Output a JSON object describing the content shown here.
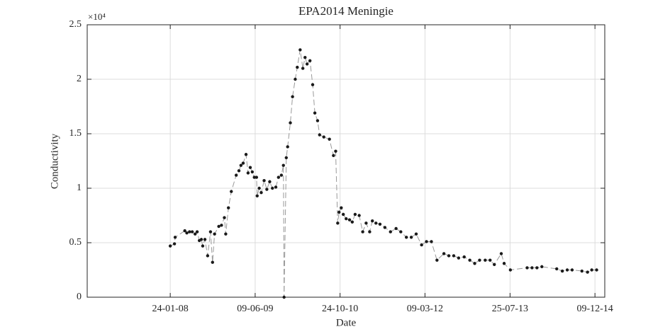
{
  "chart_data": {
    "type": "line",
    "title": "EPA2014 Meningie",
    "x_label": "Date",
    "y_label": "Conductivity",
    "y_scale_label": "×10⁴",
    "x": [
      "2008-01-24",
      "2008-02-18",
      "2008-02-22",
      "2008-04-19",
      "2008-05-01",
      "2008-05-17",
      "2008-06-02",
      "2008-06-19",
      "2008-07-01",
      "2008-07-14",
      "2008-07-26",
      "2008-08-03",
      "2008-08-16",
      "2008-09-01",
      "2008-09-18",
      "2008-09-30",
      "2008-10-12",
      "2008-11-06",
      "2008-11-22",
      "2008-12-09",
      "2008-12-17",
      "2009-01-02",
      "2009-01-19",
      "2009-02-17",
      "2009-03-05",
      "2009-03-17",
      "2009-03-30",
      "2009-04-16",
      "2009-04-28",
      "2009-05-11",
      "2009-05-23",
      "2009-06-04",
      "2009-06-17",
      "2009-06-21",
      "2009-07-03",
      "2009-07-15",
      "2009-08-01",
      "2009-08-17",
      "2009-09-03",
      "2009-09-19",
      "2009-10-09",
      "2009-10-25",
      "2009-11-11",
      "2009-11-23",
      "2009-11-27",
      "2009-12-10",
      "2009-12-18",
      "2010-01-03",
      "2010-01-16",
      "2010-02-01",
      "2010-02-13",
      "2010-03-02",
      "2010-03-18",
      "2010-03-31",
      "2010-04-12",
      "2010-04-29",
      "2010-05-15",
      "2010-05-28",
      "2010-06-13",
      "2010-06-25",
      "2010-07-20",
      "2010-08-22",
      "2010-09-15",
      "2010-09-28",
      "2010-10-10",
      "2010-10-18",
      "2010-10-31",
      "2010-11-12",
      "2010-11-29",
      "2010-12-19",
      "2011-01-04",
      "2011-01-21",
      "2011-02-14",
      "2011-03-07",
      "2011-03-27",
      "2011-04-17",
      "2011-05-03",
      "2011-05-24",
      "2011-06-17",
      "2011-07-16",
      "2011-08-18",
      "2011-09-20",
      "2011-10-18",
      "2011-11-20",
      "2011-12-19",
      "2012-01-17",
      "2012-02-18",
      "2012-03-18",
      "2012-04-16",
      "2012-05-19",
      "2012-06-29",
      "2012-07-28",
      "2012-08-26",
      "2012-09-24",
      "2012-10-27",
      "2012-11-29",
      "2012-12-28",
      "2013-01-26",
      "2013-02-28",
      "2013-03-29",
      "2013-04-23",
      "2013-06-03",
      "2013-06-20",
      "2013-07-27",
      "2013-11-03",
      "2013-12-02",
      "2013-12-31",
      "2014-01-29",
      "2014-04-27",
      "2014-05-30",
      "2014-06-28",
      "2014-07-27",
      "2014-09-23",
      "2014-10-26",
      "2014-11-20",
      "2014-12-19"
    ],
    "values": [
      4700,
      4900,
      5500,
      6100,
      5900,
      6000,
      6000,
      5800,
      6000,
      5200,
      5300,
      4700,
      5300,
      3800,
      6000,
      3200,
      5800,
      6500,
      6600,
      7300,
      5800,
      8200,
      9700,
      11200,
      11600,
      12100,
      12300,
      13100,
      11400,
      11900,
      11500,
      11000,
      11000,
      9300,
      10000,
      9600,
      10700,
      9900,
      10600,
      10000,
      10100,
      11000,
      11200,
      12100,
      0,
      12800,
      13800,
      16000,
      18400,
      20000,
      21100,
      22700,
      21000,
      22000,
      21400,
      21700,
      19500,
      16900,
      16200,
      14900,
      14700,
      14500,
      13000,
      13400,
      6800,
      7800,
      8200,
      7600,
      7200,
      7100,
      6900,
      7600,
      7500,
      6000,
      6800,
      6000,
      7000,
      6800,
      6700,
      6400,
      6000,
      6300,
      6000,
      5500,
      5500,
      5800,
      4800,
      5100,
      5100,
      3400,
      4000,
      3800,
      3800,
      3600,
      3700,
      3400,
      3100,
      3400,
      3400,
      3400,
      3000,
      4000,
      3100,
      2500,
      2700,
      2700,
      2700,
      2800,
      2600,
      2400,
      2500,
      2500,
      2400,
      2300,
      2500,
      2500
    ],
    "color": "#1a1a1a",
    "line_color": "#999999",
    "xlim": [
      "2006-09-20",
      "2015-02-05"
    ],
    "xticks": [
      {
        "value": "2008-01-24",
        "label": "24-01-08"
      },
      {
        "value": "2009-06-09",
        "label": "09-06-09"
      },
      {
        "value": "2010-10-24",
        "label": "24-10-10"
      },
      {
        "value": "2012-03-09",
        "label": "09-03-12"
      },
      {
        "value": "2013-07-25",
        "label": "25-07-13"
      },
      {
        "value": "2014-12-09",
        "label": "09-12-14"
      }
    ],
    "ylim": [
      0,
      25000
    ],
    "yticks": [
      0,
      {
        "value": 5000,
        "label": "0.5"
      },
      {
        "value": 10000,
        "label": "1"
      },
      {
        "value": 15000,
        "label": "1.5"
      },
      {
        "value": 20000,
        "label": "2"
      },
      {
        "value": 25000,
        "label": "2.5"
      }
    ],
    "grid": true
  }
}
